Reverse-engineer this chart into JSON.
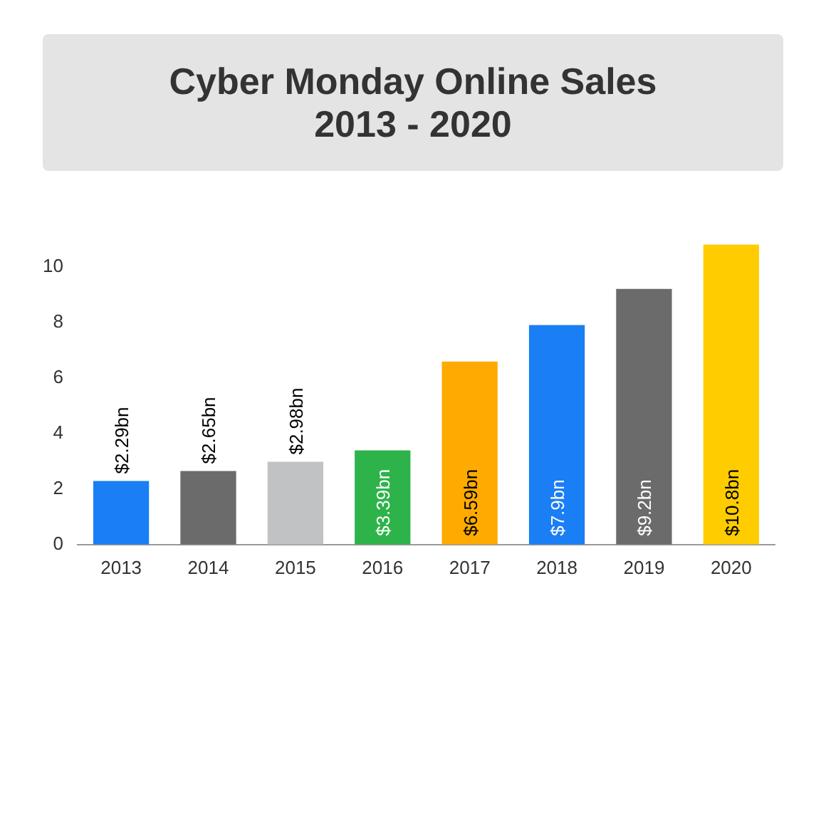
{
  "chart_data": {
    "type": "bar",
    "title": "Cyber Monday Online Sales",
    "subtitle": "2013 - 2020",
    "categories": [
      "2013",
      "2014",
      "2015",
      "2016",
      "2017",
      "2018",
      "2019",
      "2020"
    ],
    "values": [
      2.29,
      2.65,
      2.98,
      3.39,
      6.59,
      7.9,
      9.2,
      10.8
    ],
    "colors": [
      "#1a7ef5",
      "#6b6b6b",
      "#c0c2c4",
      "#2db34a",
      "#ffaa00",
      "#1a7ef5",
      "#6b6b6b",
      "#ffcc00"
    ],
    "value_labels": [
      "$2.29bn",
      "$2.65bn",
      "$2.98bn",
      "$3.39bn",
      "$6.59bn",
      "$7.9bn",
      "$9.2bn",
      "$10.8bn"
    ],
    "ylim": [
      0,
      11
    ],
    "yticks": [
      0,
      2,
      4,
      6,
      8,
      10
    ],
    "grid": false,
    "legend": false
  }
}
